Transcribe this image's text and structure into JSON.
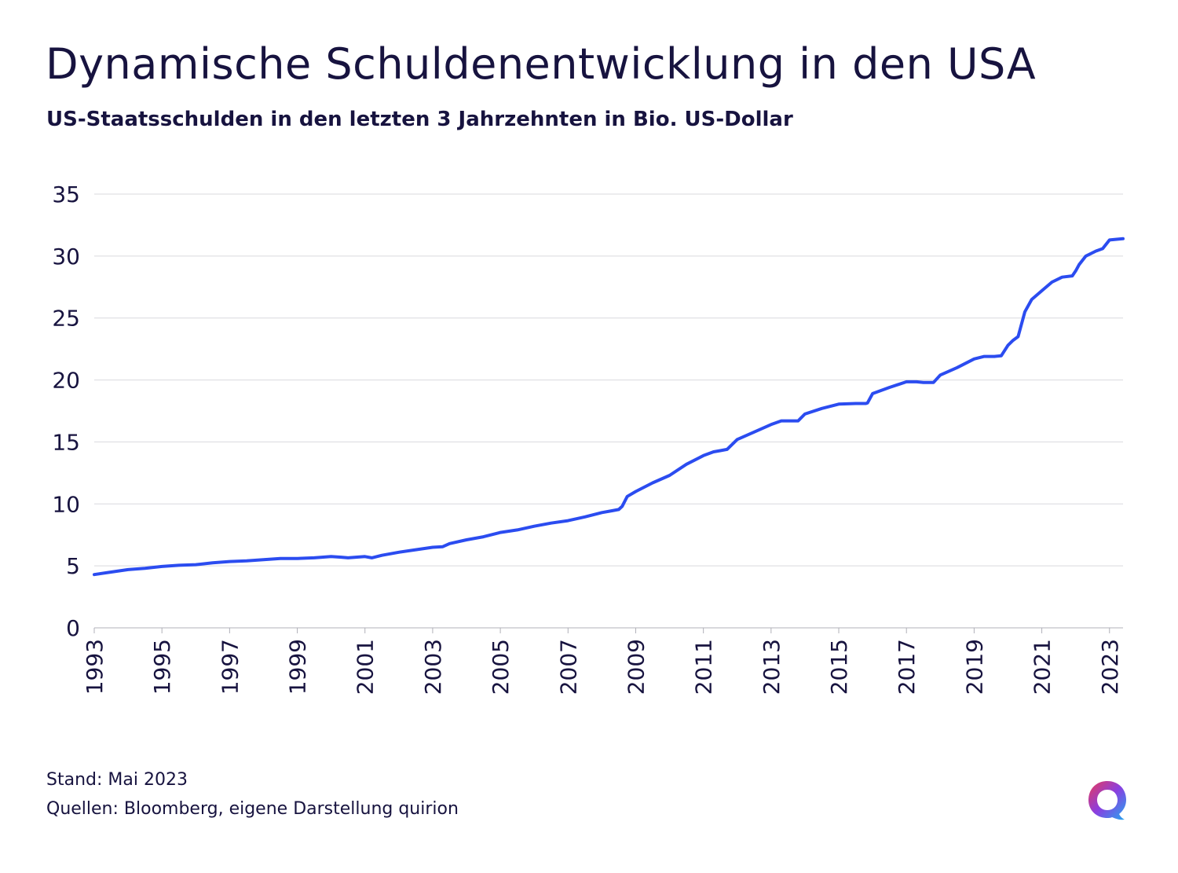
{
  "title": "Dynamische Schuldenentwicklung in den USA",
  "subtitle": "US-Staatsschulden in den letzten 3 Jahrzehnten in Bio. US-Dollar",
  "footer": {
    "stand": "Stand: Mai 2023",
    "sources": "Quellen: Bloomberg, eigene Darstellung quirion"
  },
  "logo": {
    "icon": "quirion-logo-icon"
  },
  "colors": {
    "line": "#2b4cf0",
    "text": "#17133f",
    "grid": "#d9d9de",
    "axis": "#b0b0b8"
  },
  "chart_data": {
    "type": "line",
    "title": "Dynamische Schuldenentwicklung in den USA",
    "subtitle": "US-Staatsschulden in den letzten 3 Jahrzehnten in Bio. US-Dollar",
    "xlabel": "",
    "ylabel": "",
    "xlim": [
      1993,
      2023.4
    ],
    "ylim": [
      0,
      35
    ],
    "yticks": [
      0,
      5,
      10,
      15,
      20,
      25,
      30,
      35
    ],
    "xticks": [
      1993,
      1995,
      1997,
      1999,
      2001,
      2003,
      2005,
      2007,
      2009,
      2011,
      2013,
      2015,
      2017,
      2019,
      2021,
      2023
    ],
    "grid": true,
    "legend": "none",
    "series": [
      {
        "x": [
          1993,
          1993.5,
          1994,
          1994.5,
          1995,
          1995.5,
          1996,
          1996.5,
          1997,
          1997.5,
          1998,
          1998.5,
          1999,
          1999.5,
          2000,
          2000.3,
          2000.5,
          2001,
          2001.2,
          2001.5,
          2002,
          2002.5,
          2003,
          2003.3,
          2003.5,
          2004,
          2004.5,
          2005,
          2005.5,
          2006,
          2006.5,
          2007,
          2007.5,
          2008,
          2008.3,
          2008.5,
          2008.6,
          2008.75,
          2009,
          2009.5,
          2010,
          2010.5,
          2011,
          2011.3,
          2011.5,
          2011.7,
          2012,
          2012.5,
          2013,
          2013.3,
          2013.6,
          2013.8,
          2014,
          2014.5,
          2015,
          2015.5,
          2015.8,
          2015.85,
          2016,
          2016.5,
          2017,
          2017.3,
          2017.5,
          2017.8,
          2018,
          2018.5,
          2019,
          2019.3,
          2019.6,
          2019.8,
          2020,
          2020.15,
          2020.3,
          2020.5,
          2020.7,
          2021,
          2021.3,
          2021.6,
          2021.9,
          2022,
          2022.1,
          2022.3,
          2022.6,
          2022.8,
          2023,
          2023.4
        ],
        "values": [
          4.3,
          4.5,
          4.7,
          4.8,
          4.95,
          5.05,
          5.1,
          5.25,
          5.35,
          5.4,
          5.5,
          5.6,
          5.6,
          5.65,
          5.75,
          5.7,
          5.65,
          5.75,
          5.65,
          5.85,
          6.1,
          6.3,
          6.5,
          6.55,
          6.8,
          7.1,
          7.35,
          7.7,
          7.9,
          8.2,
          8.45,
          8.65,
          8.95,
          9.3,
          9.45,
          9.55,
          9.8,
          10.6,
          11.0,
          11.7,
          12.3,
          13.2,
          13.9,
          14.2,
          14.3,
          14.4,
          15.2,
          15.8,
          16.4,
          16.7,
          16.7,
          16.7,
          17.25,
          17.7,
          18.05,
          18.1,
          18.1,
          18.15,
          18.9,
          19.4,
          19.85,
          19.85,
          19.8,
          19.8,
          20.4,
          21.0,
          21.7,
          21.9,
          21.9,
          21.95,
          22.8,
          23.2,
          23.5,
          25.5,
          26.5,
          27.2,
          27.9,
          28.3,
          28.4,
          28.8,
          29.3,
          30.0,
          30.4,
          30.6,
          31.3,
          31.4
        ]
      }
    ]
  }
}
